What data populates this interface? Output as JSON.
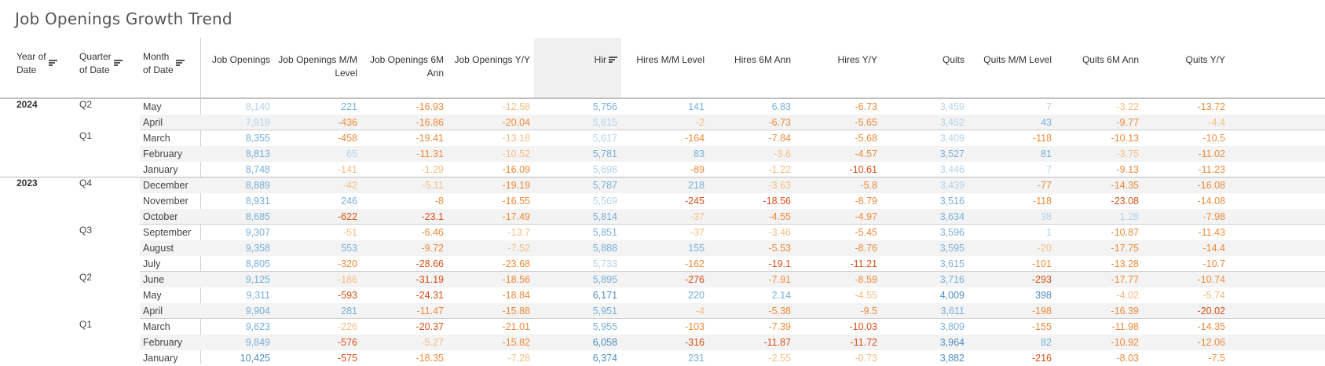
{
  "title": "Job Openings Growth Trend",
  "dims": [
    {
      "label": "Year of Date",
      "lines": [
        "Year of",
        "Date"
      ],
      "sortable": true
    },
    {
      "label": "Quarter of Date",
      "lines": [
        "Quarter",
        "of Date"
      ],
      "sortable": true
    },
    {
      "label": "Month of Date",
      "lines": [
        "Month",
        "of Date"
      ],
      "sortable": true
    }
  ],
  "columns": [
    {
      "lines": [
        "Job Openings"
      ]
    },
    {
      "lines": [
        "Job Openings M/M",
        "Level"
      ]
    },
    {
      "lines": [
        "Job Openings 6M",
        "Ann"
      ]
    },
    {
      "lines": [
        "Job Openings Y/Y"
      ]
    },
    {
      "lines": [
        "Hir"
      ],
      "sorted": true,
      "highlighted": true
    },
    {
      "lines": [
        "Hires M/M Level"
      ]
    },
    {
      "lines": [
        "Hires 6M Ann"
      ]
    },
    {
      "lines": [
        "Hires Y/Y"
      ]
    },
    {
      "lines": [
        "Quits"
      ]
    },
    {
      "lines": [
        "Quits M/M Level"
      ]
    },
    {
      "lines": [
        "Quits 6M Ann"
      ]
    },
    {
      "lines": [
        "Quits Y/Y"
      ]
    }
  ],
  "colors": {
    "blue_dark": "#4f8ec2",
    "blue_mid": "#77afd9",
    "blue_light": "#b3d2ea",
    "orange_dark": "#d84f17",
    "orange_mid": "#ee8a3a",
    "orange_light": "#f6bd83"
  },
  "rows": [
    {
      "year": "2024",
      "quarter": "Q2",
      "month": "May",
      "cells": [
        [
          "8,140",
          "bl"
        ],
        [
          "221",
          "bm"
        ],
        [
          "-16.93",
          "om"
        ],
        [
          "-12.58",
          "ol"
        ],
        [
          "5,756",
          "bm"
        ],
        [
          "141",
          "bm"
        ],
        [
          "6.83",
          "bm"
        ],
        [
          "-6.73",
          "om"
        ],
        [
          "3,459",
          "bl"
        ],
        [
          "7",
          "bl"
        ],
        [
          "-3.22",
          "ol"
        ],
        [
          "-13.72",
          "om"
        ]
      ]
    },
    {
      "year": "",
      "quarter": "",
      "month": "April",
      "cells": [
        [
          "7,919",
          "bl"
        ],
        [
          "-436",
          "om"
        ],
        [
          "-16.86",
          "om"
        ],
        [
          "-20.04",
          "om"
        ],
        [
          "5,615",
          "bl"
        ],
        [
          "-2",
          "ol"
        ],
        [
          "-6.73",
          "om"
        ],
        [
          "-5.65",
          "om"
        ],
        [
          "3,452",
          "bl"
        ],
        [
          "43",
          "bm"
        ],
        [
          "-9.77",
          "om"
        ],
        [
          "-4.4",
          "ol"
        ]
      ]
    },
    {
      "year": "",
      "quarter": "Q1",
      "month": "March",
      "cells": [
        [
          "8,355",
          "bm"
        ],
        [
          "-458",
          "om"
        ],
        [
          "-19.41",
          "om"
        ],
        [
          "-13.18",
          "ol"
        ],
        [
          "5,617",
          "bl"
        ],
        [
          "-164",
          "om"
        ],
        [
          "-7.84",
          "om"
        ],
        [
          "-5.68",
          "om"
        ],
        [
          "3,409",
          "bl"
        ],
        [
          "-118",
          "om"
        ],
        [
          "-10.13",
          "om"
        ],
        [
          "-10.5",
          "om"
        ]
      ]
    },
    {
      "year": "",
      "quarter": "",
      "month": "February",
      "cells": [
        [
          "8,813",
          "bm"
        ],
        [
          "65",
          "bl"
        ],
        [
          "-11.31",
          "om"
        ],
        [
          "-10.52",
          "ol"
        ],
        [
          "5,781",
          "bm"
        ],
        [
          "83",
          "bm"
        ],
        [
          "-3.6",
          "ol"
        ],
        [
          "-4.57",
          "om"
        ],
        [
          "3,527",
          "bm"
        ],
        [
          "81",
          "bm"
        ],
        [
          "-3.75",
          "ol"
        ],
        [
          "-11.02",
          "om"
        ]
      ]
    },
    {
      "year": "",
      "quarter": "",
      "month": "January",
      "cells": [
        [
          "8,748",
          "bm"
        ],
        [
          "-141",
          "ol"
        ],
        [
          "-1.29",
          "ol"
        ],
        [
          "-16.09",
          "om"
        ],
        [
          "5,698",
          "bl"
        ],
        [
          "-89",
          "om"
        ],
        [
          "-1.22",
          "ol"
        ],
        [
          "-10.61",
          "od"
        ],
        [
          "3,446",
          "bl"
        ],
        [
          "7",
          "bl"
        ],
        [
          "-9.13",
          "om"
        ],
        [
          "-11.23",
          "om"
        ]
      ]
    },
    {
      "year": "2023",
      "quarter": "Q4",
      "month": "December",
      "cells": [
        [
          "8,889",
          "bm"
        ],
        [
          "-42",
          "ol"
        ],
        [
          "-5.11",
          "ol"
        ],
        [
          "-19.19",
          "om"
        ],
        [
          "5,787",
          "bm"
        ],
        [
          "218",
          "bm"
        ],
        [
          "-3.63",
          "ol"
        ],
        [
          "-5.8",
          "om"
        ],
        [
          "3,439",
          "bl"
        ],
        [
          "-77",
          "om"
        ],
        [
          "-14.35",
          "om"
        ],
        [
          "-16.08",
          "om"
        ]
      ]
    },
    {
      "year": "",
      "quarter": "",
      "month": "November",
      "cells": [
        [
          "8,931",
          "bm"
        ],
        [
          "246",
          "bm"
        ],
        [
          "-8",
          "om"
        ],
        [
          "-16.55",
          "om"
        ],
        [
          "5,569",
          "bl"
        ],
        [
          "-245",
          "od"
        ],
        [
          "-18.56",
          "od"
        ],
        [
          "-8.79",
          "om"
        ],
        [
          "3,516",
          "bm"
        ],
        [
          "-118",
          "om"
        ],
        [
          "-23.08",
          "od"
        ],
        [
          "-14.08",
          "om"
        ]
      ]
    },
    {
      "year": "",
      "quarter": "",
      "month": "October",
      "cells": [
        [
          "8,685",
          "bm"
        ],
        [
          "-622",
          "od"
        ],
        [
          "-23.1",
          "od"
        ],
        [
          "-17.49",
          "om"
        ],
        [
          "5,814",
          "bm"
        ],
        [
          "-37",
          "ol"
        ],
        [
          "-4.55",
          "om"
        ],
        [
          "-4.97",
          "om"
        ],
        [
          "3,634",
          "bm"
        ],
        [
          "38",
          "bl"
        ],
        [
          "1.28",
          "bl"
        ],
        [
          "-7.98",
          "om"
        ]
      ]
    },
    {
      "year": "",
      "quarter": "Q3",
      "month": "September",
      "cells": [
        [
          "9,307",
          "bm"
        ],
        [
          "-51",
          "ol"
        ],
        [
          "-6.46",
          "om"
        ],
        [
          "-13.7",
          "ol"
        ],
        [
          "5,851",
          "bm"
        ],
        [
          "-37",
          "ol"
        ],
        [
          "-3.46",
          "ol"
        ],
        [
          "-5.45",
          "om"
        ],
        [
          "3,596",
          "bm"
        ],
        [
          "1",
          "bl"
        ],
        [
          "-10.87",
          "om"
        ],
        [
          "-11.43",
          "om"
        ]
      ]
    },
    {
      "year": "",
      "quarter": "",
      "month": "August",
      "cells": [
        [
          "9,358",
          "bm"
        ],
        [
          "553",
          "bm"
        ],
        [
          "-9.72",
          "om"
        ],
        [
          "-7.52",
          "ol"
        ],
        [
          "5,888",
          "bm"
        ],
        [
          "155",
          "bm"
        ],
        [
          "-5.53",
          "om"
        ],
        [
          "-8.76",
          "om"
        ],
        [
          "3,595",
          "bm"
        ],
        [
          "-20",
          "ol"
        ],
        [
          "-17.75",
          "om"
        ],
        [
          "-14.4",
          "om"
        ]
      ]
    },
    {
      "year": "",
      "quarter": "",
      "month": "July",
      "cells": [
        [
          "8,805",
          "bm"
        ],
        [
          "-320",
          "om"
        ],
        [
          "-28.66",
          "od"
        ],
        [
          "-23.68",
          "om"
        ],
        [
          "5,733",
          "bl"
        ],
        [
          "-162",
          "om"
        ],
        [
          "-19.1",
          "od"
        ],
        [
          "-11.21",
          "od"
        ],
        [
          "3,615",
          "bm"
        ],
        [
          "-101",
          "om"
        ],
        [
          "-13.28",
          "om"
        ],
        [
          "-10.7",
          "om"
        ]
      ]
    },
    {
      "year": "",
      "quarter": "Q2",
      "month": "June",
      "cells": [
        [
          "9,125",
          "bm"
        ],
        [
          "-186",
          "ol"
        ],
        [
          "-31.19",
          "od"
        ],
        [
          "-18.56",
          "om"
        ],
        [
          "5,895",
          "bm"
        ],
        [
          "-276",
          "od"
        ],
        [
          "-7.91",
          "om"
        ],
        [
          "-8.59",
          "om"
        ],
        [
          "3,716",
          "bm"
        ],
        [
          "-293",
          "od"
        ],
        [
          "-17.77",
          "om"
        ],
        [
          "-10.74",
          "om"
        ]
      ]
    },
    {
      "year": "",
      "quarter": "",
      "month": "May",
      "cells": [
        [
          "9,311",
          "bm"
        ],
        [
          "-593",
          "od"
        ],
        [
          "-24.31",
          "od"
        ],
        [
          "-18.84",
          "om"
        ],
        [
          "6,171",
          "bd"
        ],
        [
          "220",
          "bm"
        ],
        [
          "2.14",
          "bm"
        ],
        [
          "-4.55",
          "ol"
        ],
        [
          "4,009",
          "bd"
        ],
        [
          "398",
          "bd"
        ],
        [
          "-4.02",
          "ol"
        ],
        [
          "-5.74",
          "ol"
        ]
      ]
    },
    {
      "year": "",
      "quarter": "",
      "month": "April",
      "cells": [
        [
          "9,904",
          "bm"
        ],
        [
          "281",
          "bm"
        ],
        [
          "-11.47",
          "om"
        ],
        [
          "-15.88",
          "om"
        ],
        [
          "5,951",
          "bm"
        ],
        [
          "-4",
          "ol"
        ],
        [
          "-5.38",
          "om"
        ],
        [
          "-9.5",
          "om"
        ],
        [
          "3,611",
          "bm"
        ],
        [
          "-198",
          "om"
        ],
        [
          "-16.39",
          "om"
        ],
        [
          "-20.02",
          "od"
        ]
      ]
    },
    {
      "year": "",
      "quarter": "Q1",
      "month": "March",
      "cells": [
        [
          "9,623",
          "bm"
        ],
        [
          "-226",
          "ol"
        ],
        [
          "-20.37",
          "od"
        ],
        [
          "-21.01",
          "om"
        ],
        [
          "5,955",
          "bm"
        ],
        [
          "-103",
          "om"
        ],
        [
          "-7.39",
          "om"
        ],
        [
          "-10.03",
          "od"
        ],
        [
          "3,809",
          "bm"
        ],
        [
          "-155",
          "om"
        ],
        [
          "-11.98",
          "om"
        ],
        [
          "-14.35",
          "om"
        ]
      ]
    },
    {
      "year": "",
      "quarter": "",
      "month": "February",
      "cells": [
        [
          "9,849",
          "bm"
        ],
        [
          "-576",
          "od"
        ],
        [
          "-5.27",
          "ol"
        ],
        [
          "-15.82",
          "om"
        ],
        [
          "6,058",
          "bd"
        ],
        [
          "-316",
          "od"
        ],
        [
          "-11.87",
          "od"
        ],
        [
          "-11.72",
          "od"
        ],
        [
          "3,964",
          "bd"
        ],
        [
          "82",
          "bm"
        ],
        [
          "-10.92",
          "om"
        ],
        [
          "-12.06",
          "om"
        ]
      ]
    },
    {
      "year": "",
      "quarter": "",
      "month": "January",
      "cells": [
        [
          "10,425",
          "bd"
        ],
        [
          "-575",
          "od"
        ],
        [
          "-18.35",
          "om"
        ],
        [
          "-7.28",
          "ol"
        ],
        [
          "6,374",
          "bd"
        ],
        [
          "231",
          "bm"
        ],
        [
          "-2.55",
          "ol"
        ],
        [
          "-0.73",
          "ol"
        ],
        [
          "3,882",
          "bd"
        ],
        [
          "-216",
          "od"
        ],
        [
          "-8.03",
          "om"
        ],
        [
          "-7.5",
          "om"
        ]
      ]
    }
  ]
}
